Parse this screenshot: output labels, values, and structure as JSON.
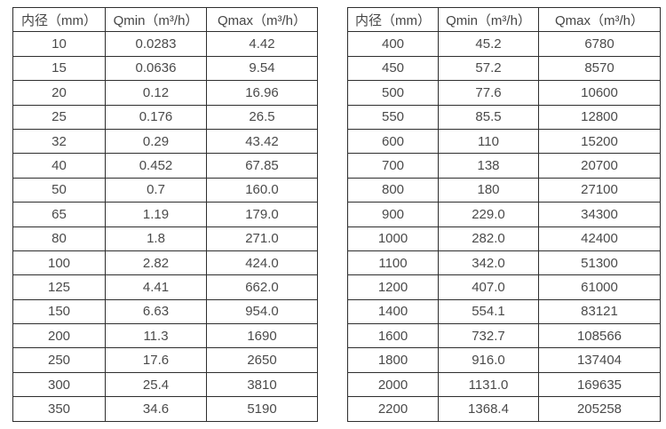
{
  "style": {
    "text_color": "#4a4a4a",
    "border_color": "#2e2e2e",
    "background_color": "#ffffff"
  },
  "chart_data": [
    {
      "type": "table",
      "title": "",
      "headers": [
        "内径（mm）",
        "Qmin（m³/h）",
        "Qmax（m³/h）"
      ],
      "rows": [
        [
          "10",
          "0.0283",
          "4.42"
        ],
        [
          "15",
          "0.0636",
          "9.54"
        ],
        [
          "20",
          "0.12",
          "16.96"
        ],
        [
          "25",
          "0.176",
          "26.5"
        ],
        [
          "32",
          "0.29",
          "43.42"
        ],
        [
          "40",
          "0.452",
          "67.85"
        ],
        [
          "50",
          "0.7",
          "160.0"
        ],
        [
          "65",
          "1.19",
          "179.0"
        ],
        [
          "80",
          "1.8",
          "271.0"
        ],
        [
          "100",
          "2.82",
          "424.0"
        ],
        [
          "125",
          "4.41",
          "662.0"
        ],
        [
          "150",
          "6.63",
          "954.0"
        ],
        [
          "200",
          "11.3",
          "1690"
        ],
        [
          "250",
          "17.6",
          "2650"
        ],
        [
          "300",
          "25.4",
          "3810"
        ],
        [
          "350",
          "34.6",
          "5190"
        ]
      ]
    },
    {
      "type": "table",
      "title": "",
      "headers": [
        "内径（mm）",
        "Qmin（m³/h）",
        "Qmax（m³/h）"
      ],
      "rows": [
        [
          "400",
          "45.2",
          "6780"
        ],
        [
          "450",
          "57.2",
          "8570"
        ],
        [
          "500",
          "77.6",
          "10600"
        ],
        [
          "550",
          "85.5",
          "12800"
        ],
        [
          "600",
          "110",
          "15200"
        ],
        [
          "700",
          "138",
          "20700"
        ],
        [
          "800",
          "180",
          "27100"
        ],
        [
          "900",
          "229.0",
          "34300"
        ],
        [
          "1000",
          "282.0",
          "42400"
        ],
        [
          "1100",
          "342.0",
          "51300"
        ],
        [
          "1200",
          "407.0",
          "61000"
        ],
        [
          "1400",
          "554.1",
          "83121"
        ],
        [
          "1600",
          "732.7",
          "108566"
        ],
        [
          "1800",
          "916.0",
          "137404"
        ],
        [
          "2000",
          "1131.0",
          "169635"
        ],
        [
          "2200",
          "1368.4",
          "205258"
        ]
      ]
    }
  ]
}
